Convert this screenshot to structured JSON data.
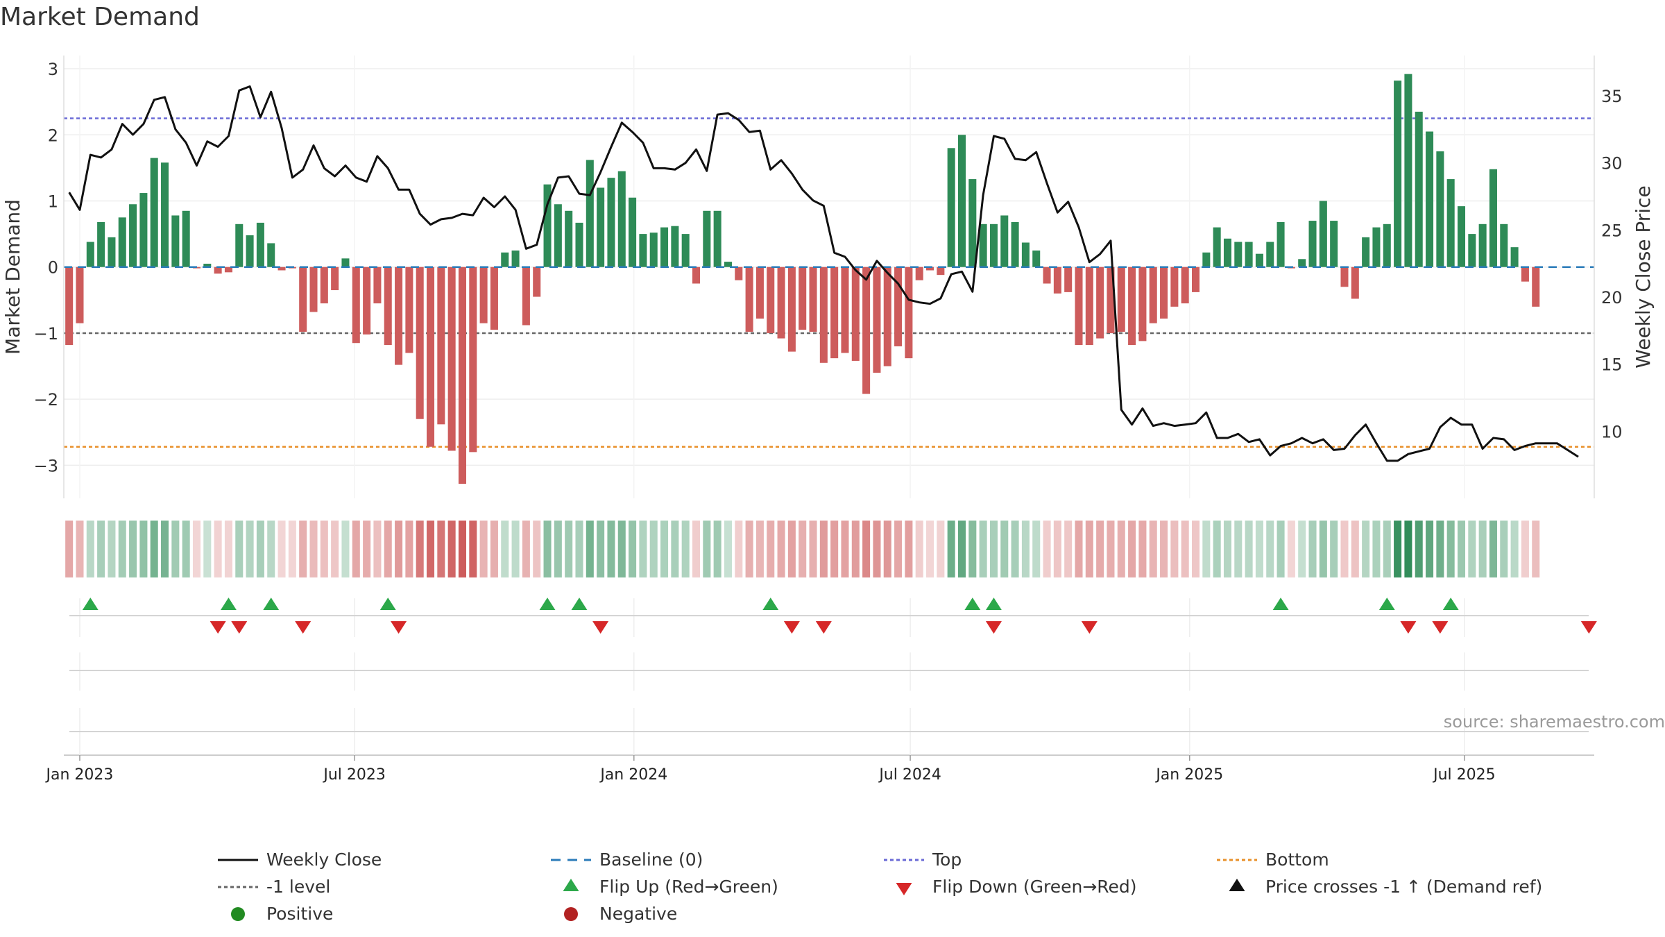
{
  "chart_data": {
    "type": "bar+line",
    "title": "Market Demand",
    "ylabel_left": "Market Demand",
    "ylabel_right": "Weekly Close Price",
    "ylim_left": [
      -3.5,
      3.2
    ],
    "ylim_right": [
      5,
      38
    ],
    "yticks_left": [
      3,
      2,
      1,
      0,
      -1,
      -2,
      -3
    ],
    "ytick_labels_left": [
      "3",
      "2",
      "1",
      "0",
      "−1",
      "−2",
      "−3"
    ],
    "yticks_right": [
      35,
      30,
      25,
      20,
      15,
      10
    ],
    "x_start": "2022-12-25",
    "x_end": "2025-09-21",
    "x_step_days": 7,
    "xticks": [
      {
        "label": "Jan 2023",
        "date": "2023-01-01"
      },
      {
        "label": "Jul 2023",
        "date": "2023-07-01"
      },
      {
        "label": "Jan 2024",
        "date": "2024-01-01"
      },
      {
        "label": "Jul 2024",
        "date": "2024-07-01"
      },
      {
        "label": "Jan 2025",
        "date": "2025-01-01"
      },
      {
        "label": "Jul 2025",
        "date": "2025-07-01"
      }
    ],
    "reference_lines": {
      "top": 2.25,
      "bottom": -2.72,
      "minus_one": -1.0,
      "baseline": 0.0
    },
    "colors": {
      "positive_bar": "#2e8b57",
      "negative_bar": "#cd5c5c",
      "price_line": "#111111",
      "top_line": "#6a6ad6",
      "bottom_line": "#e8902a",
      "minus_one_line": "#666666",
      "baseline": "#2b7bb9",
      "flip_up": "#2ca84a",
      "flip_down": "#d62728",
      "positive_dot": "#228b22",
      "negative_dot": "#b22222"
    },
    "demand": [
      -1.18,
      -0.85,
      0.38,
      0.68,
      0.45,
      0.75,
      0.95,
      1.12,
      1.65,
      1.58,
      0.78,
      0.85,
      -0.02,
      0.05,
      -0.1,
      -0.08,
      0.65,
      0.48,
      0.67,
      0.36,
      -0.05,
      -0.02,
      -0.98,
      -0.68,
      -0.55,
      -0.35,
      0.13,
      -1.15,
      -1.02,
      -0.55,
      -1.18,
      -1.48,
      -1.3,
      -2.3,
      -2.72,
      -2.38,
      -2.78,
      -3.28,
      -2.8,
      -0.85,
      -0.95,
      0.22,
      0.25,
      -0.88,
      -0.45,
      1.25,
      0.95,
      0.85,
      0.67,
      1.62,
      1.2,
      1.35,
      1.45,
      1.05,
      0.5,
      0.52,
      0.6,
      0.62,
      0.5,
      -0.25,
      0.85,
      0.85,
      0.08,
      -0.2,
      -0.98,
      -0.78,
      -1.0,
      -1.08,
      -1.28,
      -0.95,
      -0.98,
      -1.45,
      -1.38,
      -1.3,
      -1.42,
      -1.92,
      -1.6,
      -1.5,
      -1.2,
      -1.38,
      -0.2,
      -0.05,
      -0.12,
      1.8,
      2.0,
      1.33,
      0.65,
      0.65,
      0.78,
      0.68,
      0.37,
      0.25,
      -0.25,
      -0.4,
      -0.38,
      -1.18,
      -1.18,
      -1.08,
      -1.0,
      -0.98,
      -1.18,
      -1.12,
      -0.85,
      -0.78,
      -0.6,
      -0.55,
      -0.38,
      0.22,
      0.6,
      0.43,
      0.38,
      0.38,
      0.2,
      0.38,
      0.68,
      -0.02,
      0.12,
      0.7,
      1.0,
      0.7,
      -0.3,
      -0.48,
      0.45,
      0.6,
      0.65,
      2.82,
      2.92,
      2.35,
      2.05,
      1.75,
      1.33,
      0.92,
      0.5,
      0.65,
      1.48,
      0.65,
      0.3,
      -0.22,
      -0.6
    ],
    "close": [
      27.8,
      26.5,
      30.6,
      30.4,
      31.0,
      32.9,
      32.1,
      32.9,
      34.7,
      34.9,
      32.5,
      31.5,
      29.8,
      31.6,
      31.2,
      32.0,
      35.4,
      35.7,
      33.4,
      35.3,
      32.6,
      28.9,
      29.5,
      31.3,
      29.6,
      29.0,
      29.8,
      28.9,
      28.6,
      30.5,
      29.6,
      28.0,
      28.0,
      26.2,
      25.4,
      25.8,
      25.9,
      26.2,
      26.1,
      27.4,
      26.7,
      27.5,
      26.5,
      23.6,
      23.9,
      26.9,
      28.9,
      29.0,
      27.7,
      27.6,
      29.3,
      31.2,
      33.0,
      32.3,
      31.5,
      29.6,
      29.6,
      29.5,
      30.0,
      31.0,
      29.4,
      33.6,
      33.7,
      33.2,
      32.3,
      32.4,
      29.5,
      30.2,
      29.2,
      28.0,
      27.2,
      26.8,
      23.3,
      23.0,
      22.0,
      21.3,
      22.7,
      21.8,
      21.0,
      19.8,
      19.6,
      19.5,
      19.9,
      21.7,
      21.9,
      20.4,
      27.6,
      32.0,
      31.8,
      30.3,
      30.2,
      30.8,
      28.5,
      26.3,
      27.1,
      25.2,
      22.6,
      23.2,
      24.2,
      11.6,
      10.5,
      11.7,
      10.4,
      10.6,
      10.4,
      10.5,
      10.6,
      11.4,
      9.5,
      9.5,
      9.8,
      9.2,
      9.4,
      8.2,
      8.9,
      9.1,
      9.5,
      9.1,
      9.4,
      8.6,
      8.7,
      9.7,
      10.5,
      9.1,
      7.8,
      7.8,
      8.3,
      8.5,
      8.7,
      10.3,
      11.0,
      10.5,
      10.5,
      8.7,
      9.5,
      9.4,
      8.6,
      8.9,
      9.1,
      9.1,
      9.1,
      8.6,
      8.1
    ],
    "flip_up_dates": [
      "2023-01-08",
      "2023-04-09",
      "2023-05-07",
      "2023-07-23",
      "2023-11-05",
      "2023-11-26",
      "2024-03-31",
      "2024-08-11",
      "2024-08-25",
      "2025-03-02",
      "2025-05-11",
      "2025-06-22"
    ],
    "flip_down_dates": [
      "2023-04-02",
      "2023-04-16",
      "2023-05-28",
      "2023-07-30",
      "2023-12-10",
      "2024-04-14",
      "2024-05-05",
      "2024-08-25",
      "2024-10-27",
      "2025-05-25",
      "2025-06-15",
      "2025-09-21"
    ],
    "legend": {
      "weekly_close": "Weekly Close",
      "baseline": "Baseline (0)",
      "top": "Top",
      "bottom": "Bottom",
      "minus_one": "-1 level",
      "flip_up": "Flip Up (Red→Green)",
      "flip_down": "Flip Down (Green→Red)",
      "price_cross": "Price crosses -1 ↑ (Demand ref)",
      "positive": "Positive",
      "negative": "Negative"
    },
    "source": "source: sharemaestro.com"
  }
}
